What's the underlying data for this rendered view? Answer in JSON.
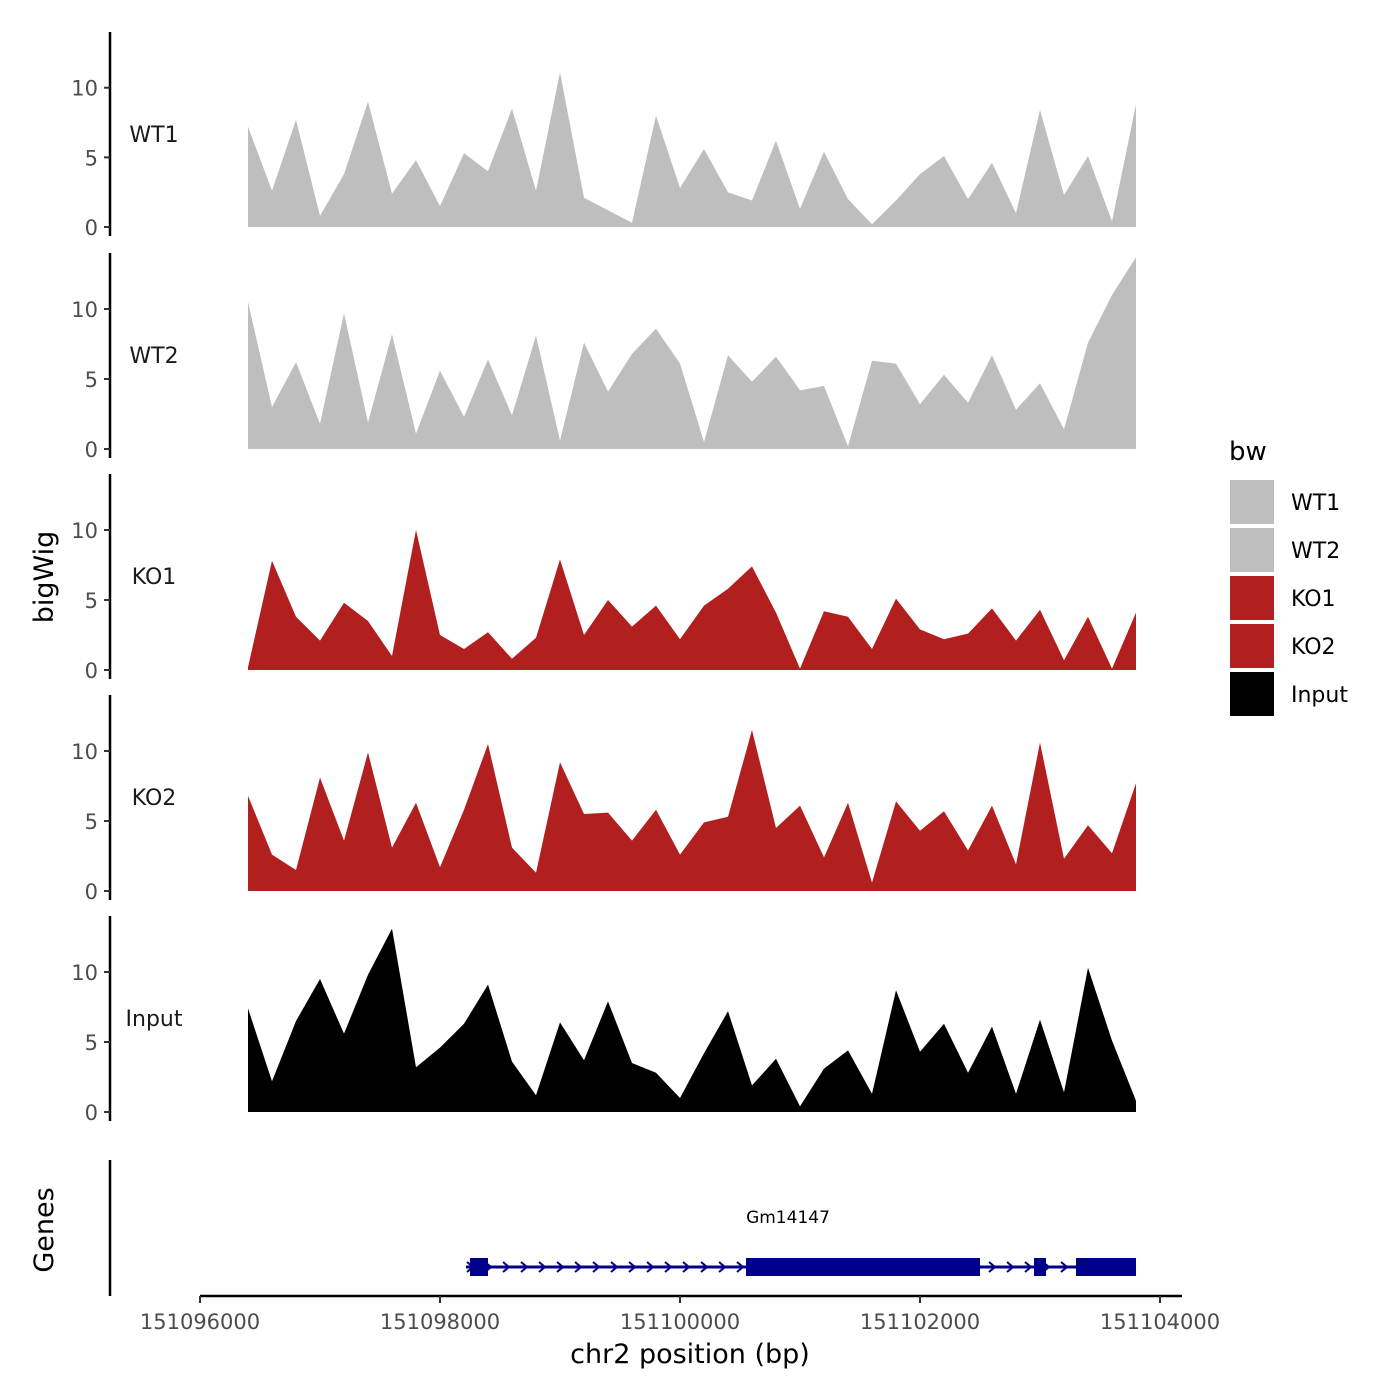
{
  "chart_data": {
    "type": "area",
    "title": "",
    "ylabel": "bigWig",
    "xlabel": "chr2 position (bp)",
    "ylim": [
      0,
      14
    ],
    "yticks": [
      0,
      5,
      10
    ],
    "xlim": [
      151096000,
      151104000
    ],
    "xticks": [
      "151096000",
      "151098000",
      "151100000",
      "151102000",
      "151104000"
    ],
    "xtick_values": [
      151096000,
      151098000,
      151100000,
      151102000,
      151104000
    ],
    "x": [
      151096400,
      151096600,
      151096800,
      151097000,
      151097200,
      151097400,
      151097600,
      151097800,
      151098000,
      151098200,
      151098400,
      151098600,
      151098800,
      151099000,
      151099200,
      151099400,
      151099600,
      151099800,
      151100000,
      151100200,
      151100400,
      151100600,
      151100800,
      151101000,
      151101200,
      151101400,
      151101600,
      151101800,
      151102000,
      151102200,
      151102400,
      151102600,
      151102800,
      151103000,
      151103200,
      151103400,
      151103600,
      151103800
    ],
    "series": [
      {
        "name": "WT1",
        "color": "#bebebe",
        "values": [
          7.2,
          2.6,
          7.7,
          0.8,
          3.8,
          9.0,
          2.4,
          4.8,
          1.5,
          5.3,
          4.0,
          8.5,
          2.6,
          11.1,
          2.1,
          1.2,
          0.3,
          8.0,
          2.8,
          5.6,
          2.5,
          1.9,
          6.2,
          1.3,
          5.4,
          2.0,
          0.2,
          1.9,
          3.8,
          5.1,
          2.0,
          4.6,
          1.0,
          8.4,
          2.3,
          5.1,
          0.4,
          8.8
        ]
      },
      {
        "name": "WT2",
        "color": "#bebebe",
        "values": [
          10.5,
          3.0,
          6.2,
          1.8,
          9.7,
          1.9,
          8.2,
          1.1,
          5.6,
          2.3,
          6.4,
          2.4,
          8.1,
          0.6,
          7.6,
          4.1,
          6.8,
          8.6,
          6.1,
          0.5,
          6.7,
          4.8,
          6.6,
          4.2,
          4.5,
          0.2,
          6.3,
          6.1,
          3.2,
          5.3,
          3.3,
          6.7,
          2.8,
          4.7,
          1.4,
          7.6,
          11.0,
          13.7
        ]
      },
      {
        "name": "KO1",
        "color": "#b21f1f",
        "values": [
          0.2,
          7.8,
          3.8,
          2.1,
          4.8,
          3.5,
          1.0,
          10.0,
          2.5,
          1.5,
          2.7,
          0.8,
          2.3,
          7.9,
          2.5,
          5.0,
          3.1,
          4.6,
          2.2,
          4.6,
          5.8,
          7.4,
          4.1,
          0.1,
          4.2,
          3.8,
          1.5,
          5.1,
          2.9,
          2.2,
          2.6,
          4.4,
          2.1,
          4.3,
          0.7,
          3.8,
          0.1,
          4.1
        ]
      },
      {
        "name": "KO2",
        "color": "#b21f1f",
        "values": [
          6.8,
          2.6,
          1.5,
          8.1,
          3.6,
          9.9,
          3.1,
          6.3,
          1.7,
          5.8,
          10.5,
          3.1,
          1.3,
          9.2,
          5.5,
          5.6,
          3.6,
          5.8,
          2.6,
          4.9,
          5.3,
          11.5,
          4.5,
          6.1,
          2.4,
          6.3,
          0.6,
          6.4,
          4.3,
          5.7,
          2.9,
          6.1,
          1.9,
          10.6,
          2.3,
          4.7,
          2.7,
          7.7
        ]
      },
      {
        "name": "Input",
        "color": "#000000",
        "values": [
          7.4,
          2.2,
          6.5,
          9.5,
          5.6,
          9.8,
          13.1,
          3.2,
          4.6,
          6.3,
          9.1,
          3.6,
          1.2,
          6.4,
          3.7,
          7.9,
          3.5,
          2.8,
          1.0,
          4.2,
          7.2,
          1.9,
          3.8,
          0.4,
          3.1,
          4.4,
          1.3,
          8.7,
          4.3,
          6.3,
          2.8,
          6.1,
          1.3,
          6.6,
          1.4,
          10.3,
          5.1,
          0.8
        ]
      }
    ],
    "panel_labels": [
      "WT1",
      "WT2",
      "KO1",
      "KO2",
      "Input"
    ],
    "gene_track": {
      "label": "Genes",
      "gene_name": "Gm14147",
      "strand": "+",
      "color": "#00008b",
      "start": 151098250,
      "end": 151103800,
      "exons": [
        {
          "start": 151098250,
          "end": 151098400
        },
        {
          "start": 151100550,
          "end": 151102500
        },
        {
          "start": 151102950,
          "end": 151103050
        },
        {
          "start": 151103300,
          "end": 151103800
        }
      ]
    },
    "legend": {
      "title": "bw",
      "placement": "right",
      "entries": [
        {
          "label": "WT1",
          "color": "#bebebe"
        },
        {
          "label": "WT2",
          "color": "#bebebe"
        },
        {
          "label": "KO1",
          "color": "#b21f1f"
        },
        {
          "label": "KO2",
          "color": "#b21f1f"
        },
        {
          "label": "Input",
          "color": "#000000"
        }
      ]
    }
  }
}
